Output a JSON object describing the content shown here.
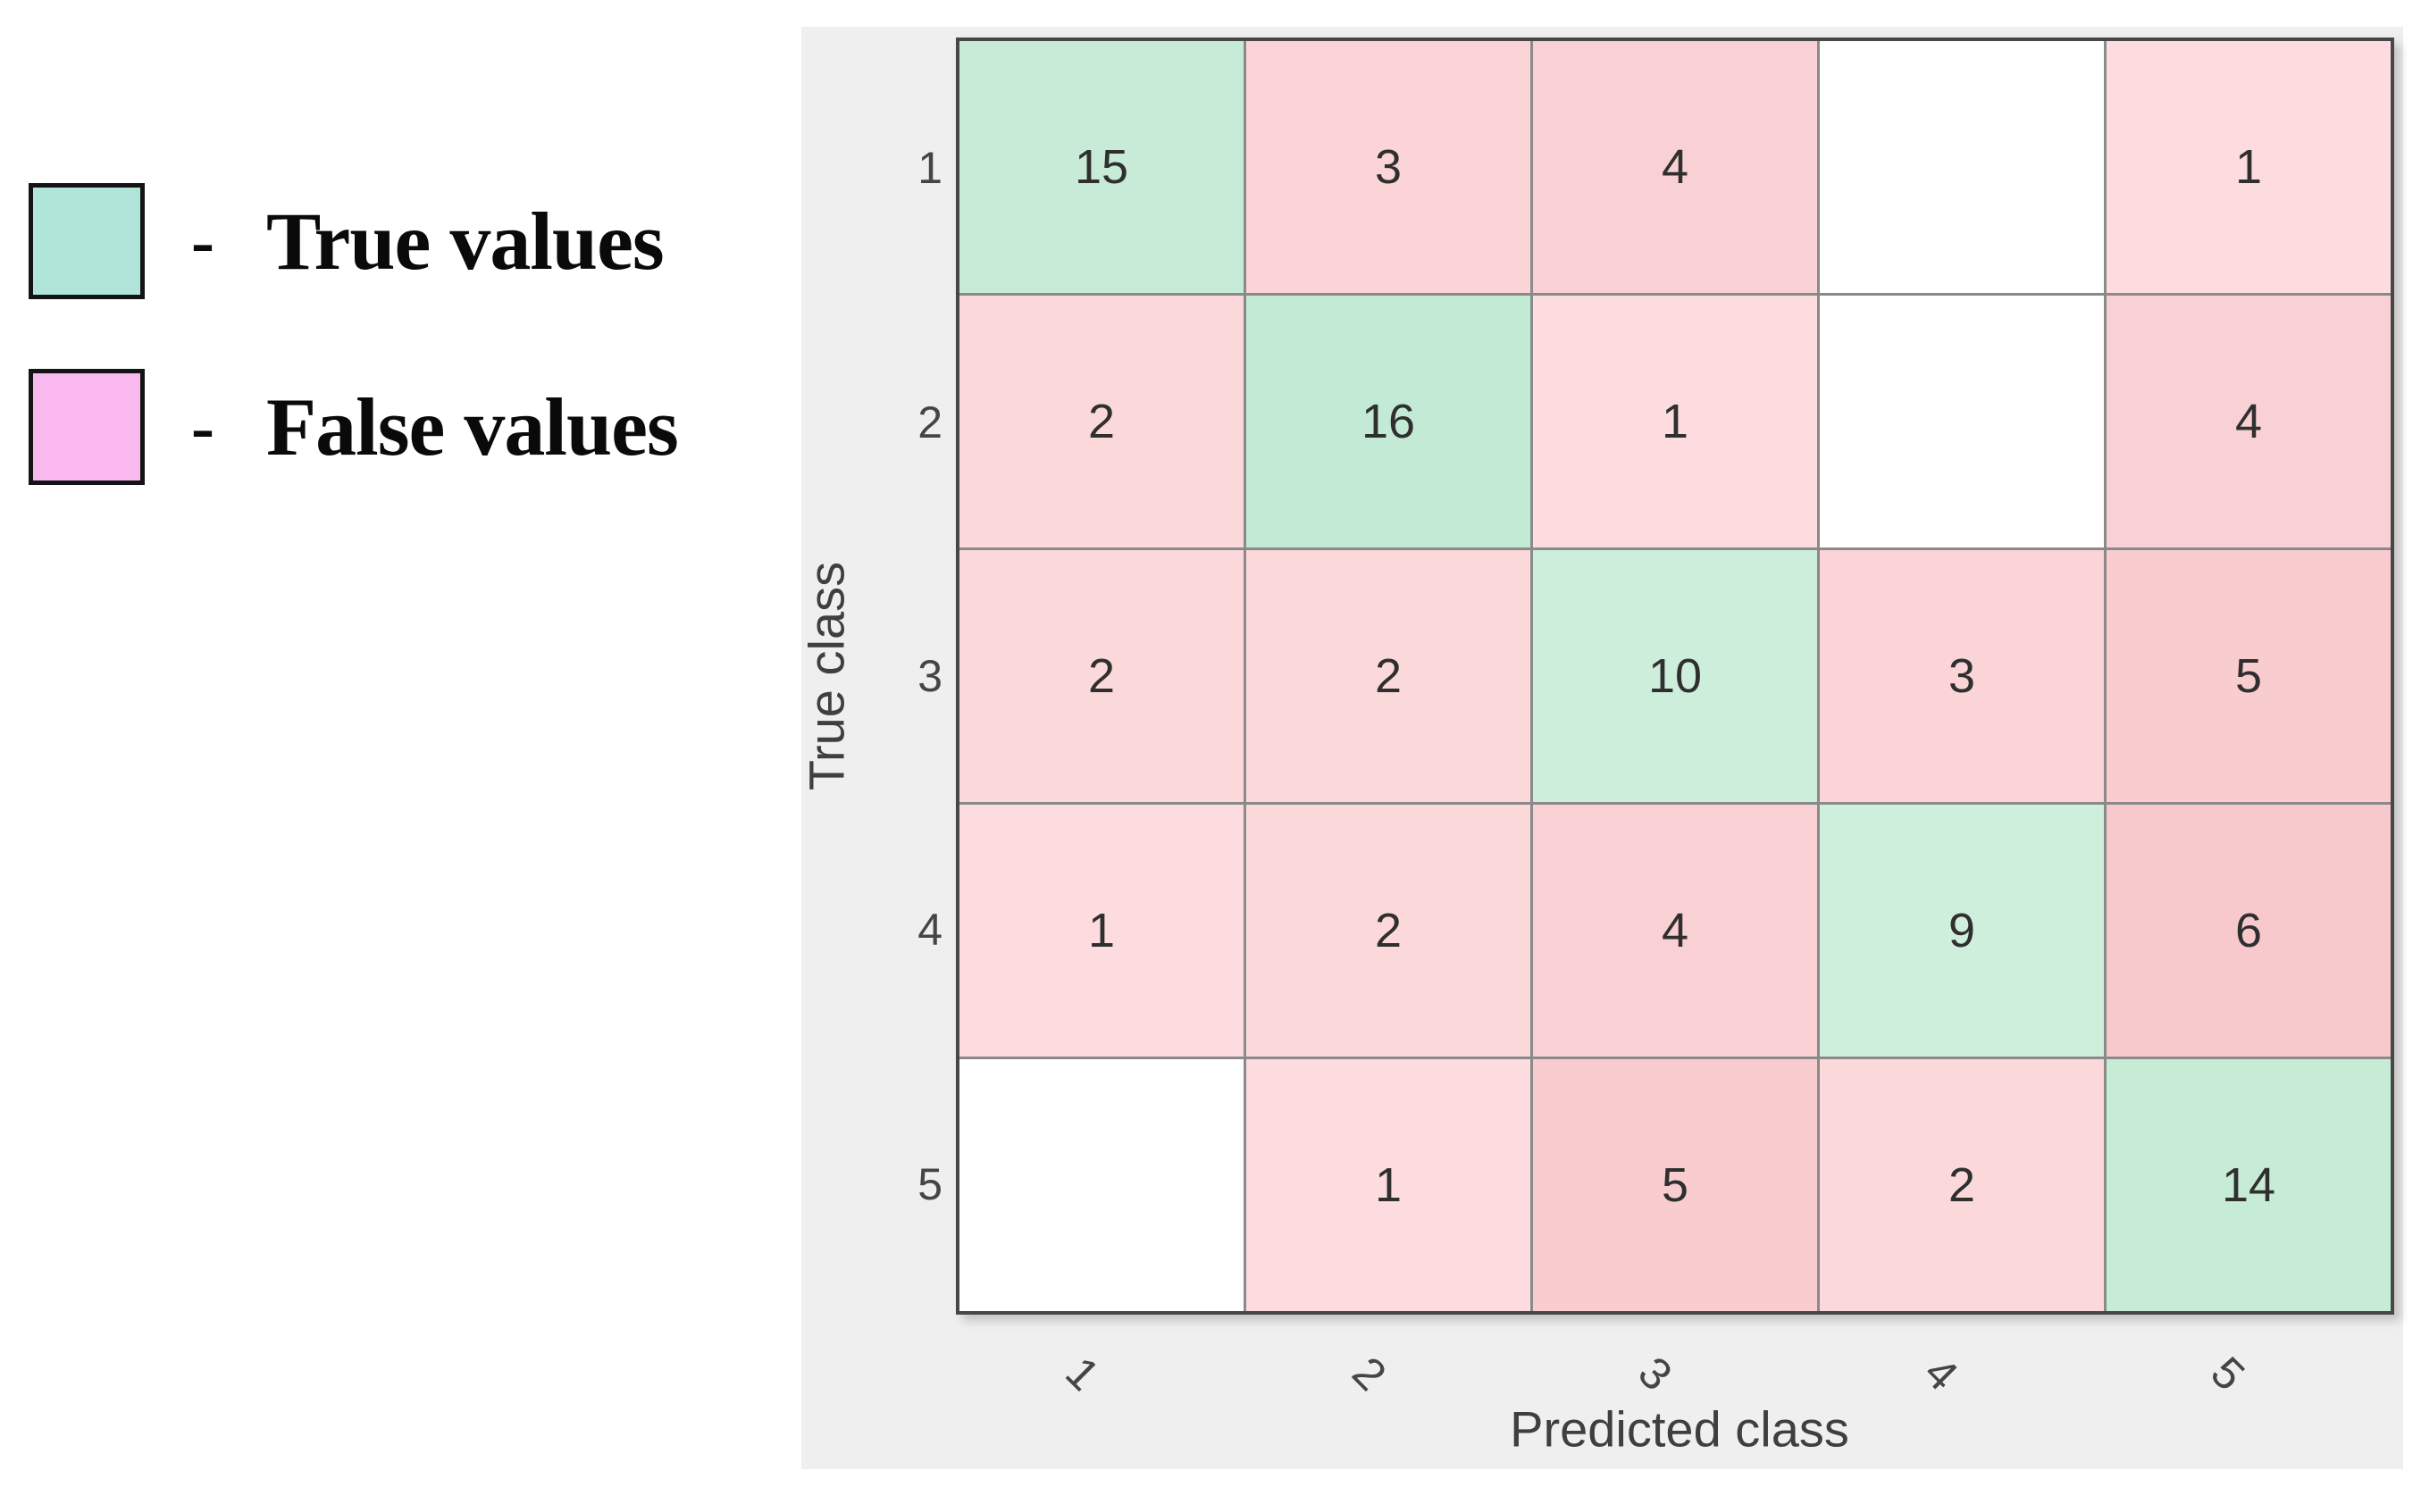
{
  "legend": {
    "items": [
      {
        "id": "true-values",
        "swatch_color": "#b2e5da",
        "swatch_border": "#141414",
        "separator": "-",
        "label": "True values"
      },
      {
        "id": "false-values",
        "swatch_color": "#f9b8ee",
        "swatch_border": "#141414",
        "separator": "-",
        "label": "False values"
      }
    ]
  },
  "chart_data": {
    "type": "heatmap",
    "title": "",
    "xlabel": "Predicted class",
    "ylabel": "True class",
    "x_tick_labels": [
      "1",
      "2",
      "3",
      "4",
      "5"
    ],
    "y_tick_labels": [
      "1",
      "2",
      "3",
      "4",
      "5"
    ],
    "matrix": [
      [
        15,
        3,
        4,
        null,
        1
      ],
      [
        2,
        16,
        1,
        null,
        4
      ],
      [
        2,
        2,
        10,
        3,
        5
      ],
      [
        1,
        2,
        4,
        9,
        6
      ],
      [
        null,
        1,
        5,
        2,
        14
      ]
    ],
    "cell_colors": [
      [
        "#c7ebd6",
        "#fad4d6",
        "#f9d0d3",
        "#ffffff",
        "#fcdcde"
      ],
      [
        "#fbd8da",
        "#c3ead4",
        "#fcdcde",
        "#ffffff",
        "#f9d0d3"
      ],
      [
        "#fbd8da",
        "#fbd8da",
        "#cceedb",
        "#fad4d6",
        "#f9cdd0"
      ],
      [
        "#fcdcde",
        "#fbd8da",
        "#f9d0d3",
        "#cfefdd",
        "#f8c9cc"
      ],
      [
        "#ffffff",
        "#fcdcde",
        "#f9cdd0",
        "#fbd8da",
        "#c6ecd5"
      ]
    ],
    "legend_position": "left",
    "grid": true,
    "diagonal_color": "#c6ecd5",
    "off_diagonal_color": "#fad4d6",
    "empty_cell_color": "#ffffff"
  },
  "colors": {
    "page_background": "#ffffff",
    "figure_background": "#efefef",
    "grid_line": "#8a8a8a",
    "axes_border": "#474747",
    "cell_text": "#2f2f2f",
    "tick_text": "#454545",
    "axis_label_text": "#3f3f3f"
  }
}
